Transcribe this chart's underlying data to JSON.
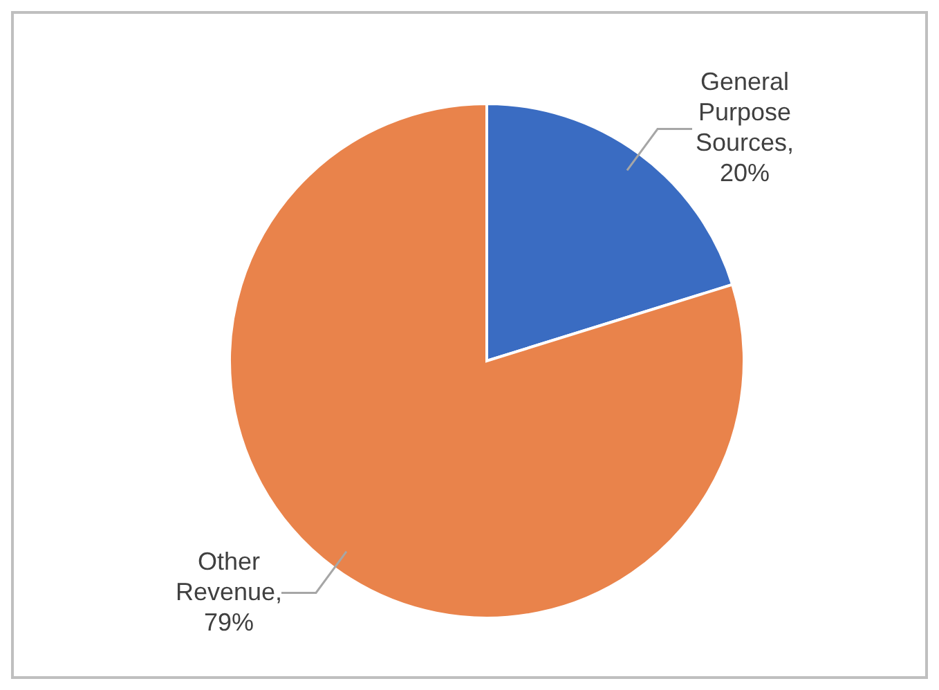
{
  "chart_data": {
    "type": "pie",
    "categories": [
      "General Purpose Sources",
      "Other Revenue"
    ],
    "values": [
      20,
      79
    ],
    "colors": [
      "#3a6cc2",
      "#e9834b"
    ],
    "value_labels": [
      ", 20%",
      ", 79%"
    ],
    "legend": false
  }
}
